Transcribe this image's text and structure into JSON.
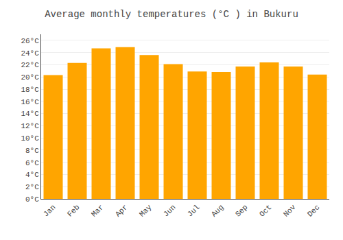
{
  "chart_data": {
    "type": "bar",
    "title": "Average monthly temperatures (°C ) in Bukuru",
    "categories": [
      "Jan",
      "Feb",
      "Mar",
      "Apr",
      "May",
      "Jun",
      "Jul",
      "Aug",
      "Sep",
      "Oct",
      "Nov",
      "Dec"
    ],
    "values": [
      20.3,
      22.3,
      24.7,
      24.9,
      23.6,
      22.1,
      20.9,
      20.8,
      21.7,
      22.4,
      21.7,
      20.4
    ],
    "color": "#FFA500",
    "ylim": [
      0,
      27
    ],
    "yticks": [
      {
        "value": 0,
        "label": "0°C"
      },
      {
        "value": 2,
        "label": "2°C"
      },
      {
        "value": 4,
        "label": "4°C"
      },
      {
        "value": 6,
        "label": "6°C"
      },
      {
        "value": 8,
        "label": "8°C"
      },
      {
        "value": 10,
        "label": "10°C"
      },
      {
        "value": 12,
        "label": "12°C"
      },
      {
        "value": 14,
        "label": "14°C"
      },
      {
        "value": 16,
        "label": "16°C"
      },
      {
        "value": 18,
        "label": "18°C"
      },
      {
        "value": 20,
        "label": "20°C"
      },
      {
        "value": 22,
        "label": "22°C"
      },
      {
        "value": 24,
        "label": "24°C"
      },
      {
        "value": 26,
        "label": "26°C"
      }
    ],
    "grid": true
  }
}
